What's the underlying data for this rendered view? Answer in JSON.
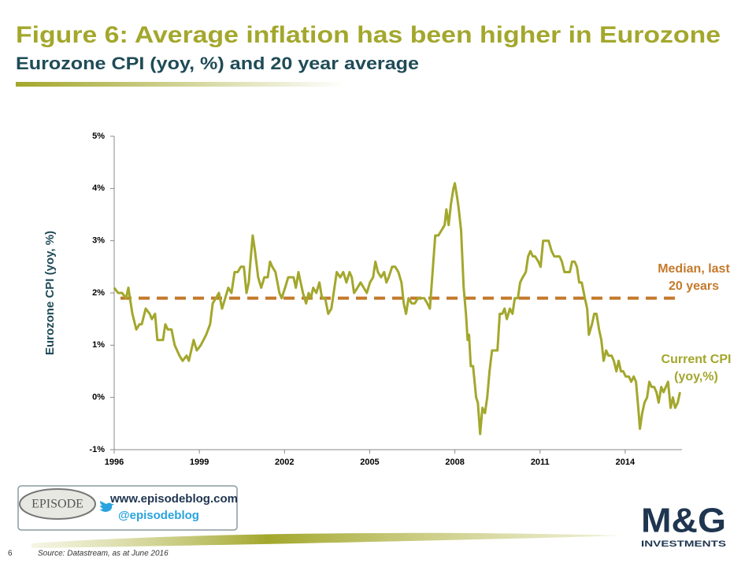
{
  "slide": {
    "title": "Figure 6: Average inflation has been higher in Eurozone",
    "subtitle": "Eurozone CPI (yoy, %) and 20 year average",
    "page_number": "6",
    "source": "Source: Datastream, as at June 2016",
    "episode_logo": "EPISODE",
    "website": "www.episodeblog.com",
    "twitter": "@episodeblog",
    "brand": "M&G",
    "brand_sub": "INVESTMENTS"
  },
  "chart_data": {
    "type": "line",
    "ylabel": "Eurozone CPI (yoy, %)",
    "xlim": [
      1996,
      2016
    ],
    "xticks": [
      1996,
      1999,
      2002,
      2005,
      2008,
      2011,
      2014
    ],
    "ylim": [
      -1,
      5
    ],
    "yticks": [
      {
        "value": -1,
        "label": "-1%"
      },
      {
        "value": 0,
        "label": "0%"
      },
      {
        "value": 1,
        "label": "1%"
      },
      {
        "value": 2,
        "label": "2%"
      },
      {
        "value": 3,
        "label": "3%"
      },
      {
        "value": 4,
        "label": "4%"
      },
      {
        "value": 5,
        "label": "5%"
      }
    ],
    "reference_line": {
      "value": 1.9,
      "color": "#c47a2c",
      "label": [
        "Median, last",
        "20 years"
      ]
    },
    "series": [
      {
        "name": [
          "Current CPI",
          "(yoy,%)"
        ],
        "color": "#a3a72c",
        "x": [
          1996.0,
          1996.14,
          1996.28,
          1996.42,
          1996.5,
          1996.64,
          1996.78,
          1996.89,
          1996.97,
          1997.11,
          1997.25,
          1997.33,
          1997.44,
          1997.52,
          1997.72,
          1997.8,
          1997.89,
          1998.02,
          1998.13,
          1998.3,
          1998.41,
          1998.55,
          1998.63,
          1998.8,
          1998.91,
          1999.05,
          1999.24,
          1999.38,
          1999.47,
          1999.58,
          1999.69,
          1999.8,
          1999.91,
          2000.02,
          2000.13,
          2000.24,
          2000.35,
          2000.46,
          2000.57,
          2000.66,
          2000.74,
          2000.8,
          2000.88,
          2000.96,
          2001.07,
          2001.18,
          2001.29,
          2001.41,
          2001.49,
          2001.57,
          2001.68,
          2001.82,
          2001.9,
          2002.02,
          2002.13,
          2002.24,
          2002.32,
          2002.4,
          2002.49,
          2002.57,
          2002.65,
          2002.76,
          2002.85,
          2002.93,
          2003.01,
          2003.12,
          2003.23,
          2003.32,
          2003.43,
          2003.54,
          2003.65,
          2003.73,
          2003.84,
          2003.96,
          2004.07,
          2004.18,
          2004.29,
          2004.37,
          2004.45,
          2004.57,
          2004.68,
          2004.79,
          2004.9,
          2005.01,
          2005.12,
          2005.2,
          2005.29,
          2005.4,
          2005.51,
          2005.59,
          2005.67,
          2005.79,
          2005.9,
          2006.01,
          2006.12,
          2006.2,
          2006.28,
          2006.37,
          2006.48,
          2006.59,
          2006.7,
          2006.81,
          2006.92,
          2007.03,
          2007.12,
          2007.23,
          2007.31,
          2007.42,
          2007.53,
          2007.64,
          2007.7,
          2007.78,
          2007.86,
          2007.95,
          2008.0,
          2008.09,
          2008.14,
          2008.22,
          2008.31,
          2008.39,
          2008.45,
          2008.5,
          2008.56,
          2008.64,
          2008.75,
          2008.81,
          2008.89,
          2008.97,
          2009.06,
          2009.14,
          2009.22,
          2009.31,
          2009.39,
          2009.5,
          2009.58,
          2009.67,
          2009.75,
          2009.83,
          2009.94,
          2010.03,
          2010.11,
          2010.22,
          2010.3,
          2010.39,
          2010.5,
          2010.58,
          2010.66,
          2010.75,
          2010.83,
          2010.94,
          2011.02,
          2011.11,
          2011.22,
          2011.3,
          2011.41,
          2011.5,
          2011.58,
          2011.69,
          2011.77,
          2011.86,
          2011.94,
          2012.05,
          2012.13,
          2012.22,
          2012.3,
          2012.38,
          2012.47,
          2012.58,
          2012.66,
          2012.72,
          2012.83,
          2012.91,
          2012.99,
          2013.08,
          2013.16,
          2013.24,
          2013.33,
          2013.41,
          2013.52,
          2013.6,
          2013.69,
          2013.77,
          2013.85,
          2013.93,
          2014.02,
          2014.13,
          2014.21,
          2014.3,
          2014.38,
          2014.46,
          2014.52,
          2014.6,
          2014.68,
          2014.77,
          2014.85,
          2014.93,
          2015.02,
          2015.1,
          2015.18,
          2015.27,
          2015.35,
          2015.43,
          2015.51,
          2015.6,
          2015.68,
          2015.76,
          2015.85,
          2015.93
        ],
        "values": [
          2.1,
          2.0,
          2.0,
          1.9,
          2.1,
          1.6,
          1.3,
          1.4,
          1.4,
          1.7,
          1.6,
          1.5,
          1.6,
          1.1,
          1.1,
          1.4,
          1.3,
          1.3,
          1.0,
          0.8,
          0.7,
          0.8,
          0.7,
          1.1,
          0.9,
          1.0,
          1.2,
          1.4,
          1.8,
          1.9,
          2.0,
          1.7,
          1.9,
          2.1,
          2.0,
          2.4,
          2.4,
          2.5,
          2.5,
          2.0,
          2.2,
          2.6,
          3.1,
          2.8,
          2.3,
          2.1,
          2.3,
          2.3,
          2.6,
          2.5,
          2.4,
          2.0,
          1.9,
          2.1,
          2.3,
          2.3,
          2.3,
          2.1,
          2.4,
          2.2,
          2.0,
          1.8,
          2.0,
          1.9,
          2.1,
          2.0,
          2.2,
          1.9,
          1.9,
          1.6,
          1.7,
          2.0,
          2.4,
          2.3,
          2.4,
          2.2,
          2.4,
          2.3,
          2.0,
          2.1,
          2.2,
          2.1,
          2.0,
          2.2,
          2.3,
          2.6,
          2.4,
          2.3,
          2.4,
          2.2,
          2.3,
          2.5,
          2.5,
          2.4,
          2.2,
          1.8,
          1.6,
          1.9,
          1.8,
          1.8,
          1.9,
          1.9,
          1.9,
          1.8,
          1.7,
          2.5,
          3.1,
          3.1,
          3.2,
          3.3,
          3.6,
          3.3,
          3.7,
          4.0,
          4.1,
          3.8,
          3.6,
          3.2,
          2.1,
          1.6,
          1.1,
          1.2,
          0.6,
          0.6,
          0.0,
          -0.1,
          -0.7,
          -0.2,
          -0.3,
          0.0,
          0.5,
          0.9,
          0.9,
          0.9,
          1.6,
          1.6,
          1.7,
          1.5,
          1.7,
          1.6,
          1.9,
          1.9,
          2.2,
          2.3,
          2.4,
          2.7,
          2.8,
          2.7,
          2.7,
          2.6,
          2.5,
          3.0,
          3.0,
          3.0,
          2.8,
          2.7,
          2.7,
          2.7,
          2.6,
          2.4,
          2.4,
          2.4,
          2.6,
          2.6,
          2.5,
          2.2,
          2.2,
          1.9,
          1.7,
          1.2,
          1.4,
          1.6,
          1.6,
          1.3,
          1.1,
          0.7,
          0.9,
          0.8,
          0.8,
          0.7,
          0.5,
          0.7,
          0.5,
          0.5,
          0.4,
          0.4,
          0.3,
          0.4,
          0.3,
          -0.2,
          -0.6,
          -0.3,
          -0.1,
          0.0,
          0.3,
          0.2,
          0.2,
          0.1,
          -0.1,
          0.2,
          0.1,
          0.2,
          0.3,
          -0.2,
          0.0,
          -0.2,
          -0.1,
          0.1
        ]
      }
    ]
  }
}
